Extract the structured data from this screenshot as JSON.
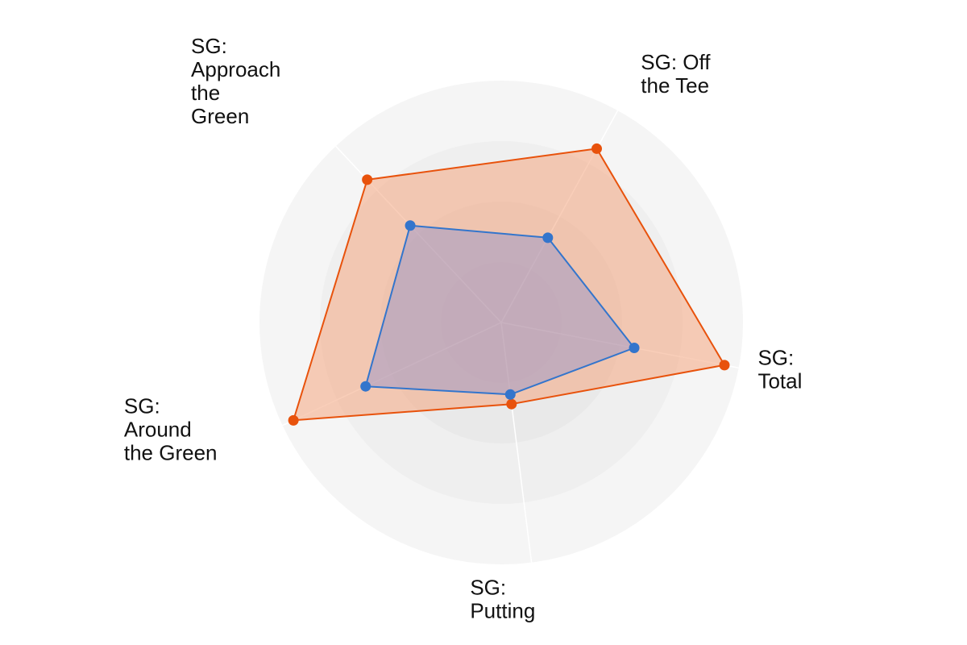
{
  "chart_data": {
    "type": "radar",
    "axes": [
      "SG: Total",
      "SG: Off the Tee",
      "SG: Approach the Green",
      "SG: Around the Green",
      "SG: Putting"
    ],
    "axis_label_lines": [
      [
        "SG:",
        "Total"
      ],
      [
        "SG: Off",
        "the Tee"
      ],
      [
        "SG:",
        "Approach",
        "the",
        "Green"
      ],
      [
        "SG:",
        "Around",
        "the Green"
      ],
      [
        "SG:",
        "Putting"
      ]
    ],
    "rlim": [
      0,
      1
    ],
    "grid": true,
    "legend": false,
    "series": [
      {
        "values": [
          0.94,
          0.82,
          0.81,
          0.95,
          0.34
        ],
        "color": "#e8520c",
        "fill": "#f4a580"
      },
      {
        "values": [
          0.56,
          0.4,
          0.55,
          0.62,
          0.3
        ],
        "color": "#3375cc",
        "fill": "#9a95c8"
      }
    ]
  }
}
